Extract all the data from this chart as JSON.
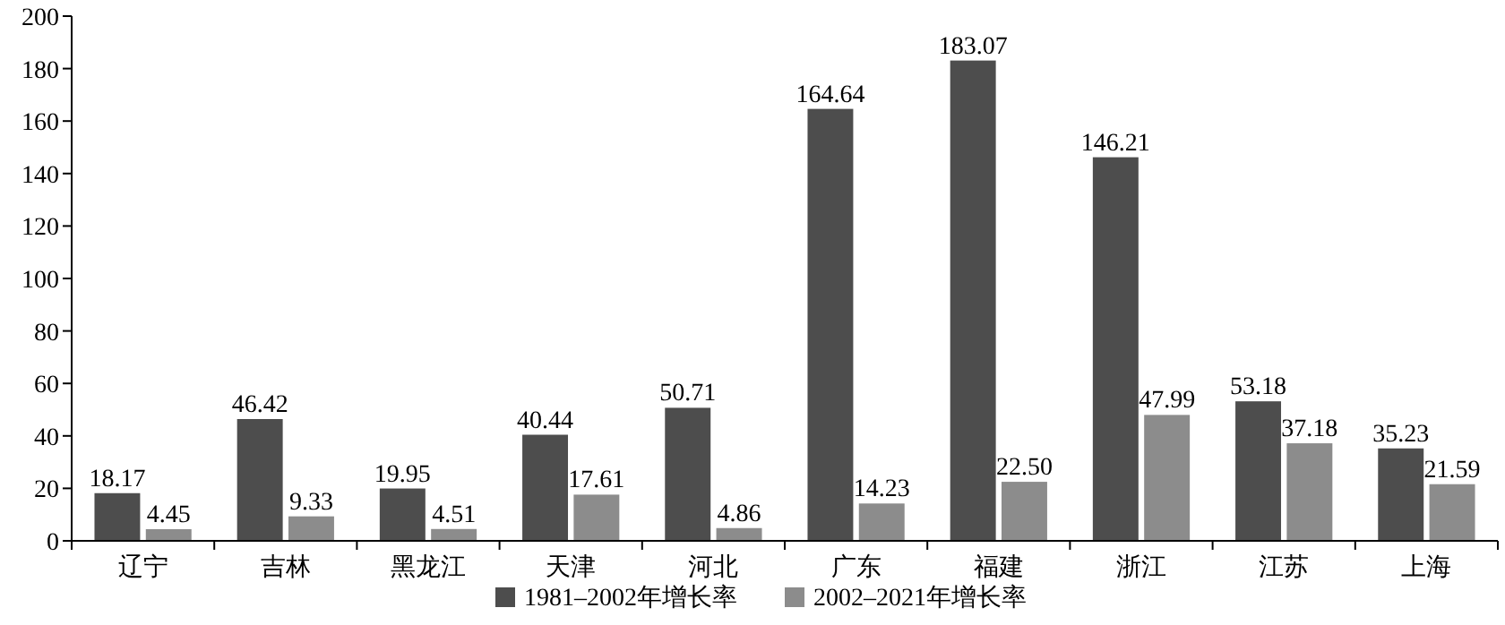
{
  "chart_data": {
    "type": "bar",
    "categories": [
      "辽宁",
      "吉林",
      "黑龙江",
      "天津",
      "河北",
      "广东",
      "福建",
      "浙江",
      "江苏",
      "上海"
    ],
    "series": [
      {
        "name": "1981–2002年增长率",
        "color": "#4d4d4d",
        "values": [
          18.17,
          46.42,
          19.95,
          40.44,
          50.71,
          164.64,
          183.07,
          146.21,
          53.18,
          35.23
        ],
        "value_labels": [
          "18.17",
          "46.42",
          "19.95",
          "40.44",
          "50.71",
          "164.64",
          "183.07",
          "146.21",
          "53.18",
          "35.23"
        ]
      },
      {
        "name": "2002–2021年增长率",
        "color": "#8c8c8c",
        "values": [
          4.45,
          9.33,
          4.51,
          17.61,
          4.86,
          14.23,
          22.5,
          47.99,
          37.18,
          21.59
        ],
        "value_labels": [
          "4.45",
          "9.33",
          "4.51",
          "17.61",
          "4.86",
          "14.23",
          "22.50",
          "47.99",
          "37.18",
          "21.59"
        ]
      }
    ],
    "ylim": [
      0,
      200
    ],
    "yticks": [
      0,
      20,
      40,
      60,
      80,
      100,
      120,
      140,
      160,
      180,
      200
    ],
    "legend": "bottom",
    "grid": false
  }
}
